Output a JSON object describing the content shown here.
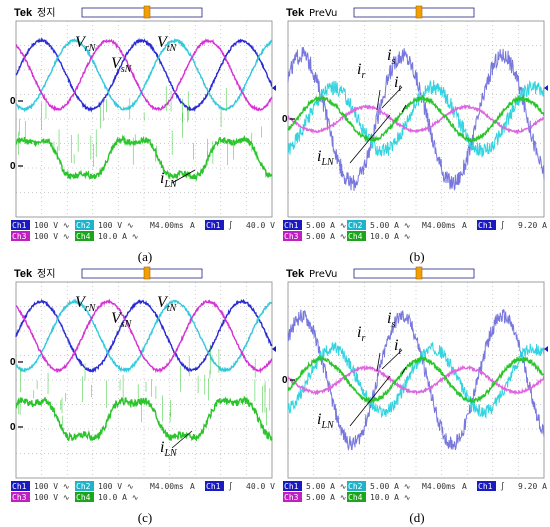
{
  "chart_data": [
    {
      "type": "line",
      "caption": "(a)",
      "header": {
        "brand": "Tek",
        "state": "정지"
      },
      "zero_markers": [
        "0",
        "0"
      ],
      "footer": {
        "row1": [
          "Ch1",
          "100 V ∿",
          "Ch2",
          "100 V ∿",
          "M4.00ms",
          "A",
          "Ch1",
          "∫",
          "40.0 V"
        ],
        "row2": [
          "Ch3",
          "100 V ∿",
          "Ch4",
          "10.0 A ∿"
        ]
      },
      "annotations": [
        {
          "base": "V",
          "sub": "rN"
        },
        {
          "base": "V",
          "sub": "sN"
        },
        {
          "base": "V",
          "sub": "tN"
        },
        {
          "base": "i",
          "sub": "LN"
        }
      ],
      "series": [
        {
          "channel": "Ch1",
          "color": "#2a2ad4",
          "kind": "sine",
          "amplitude": 1.4,
          "phase_deg": 0,
          "offset_div": 1.8,
          "noise": 0.05
        },
        {
          "channel": "Ch2",
          "color": "#33c9dd",
          "kind": "sine",
          "amplitude": 1.4,
          "phase_deg": -120,
          "offset_div": 1.8,
          "noise": 0.05
        },
        {
          "channel": "Ch3",
          "color": "#d433d4",
          "kind": "sine",
          "amplitude": 1.4,
          "phase_deg": 120,
          "offset_div": 1.8,
          "noise": 0.05
        },
        {
          "channel": "Ch4",
          "color": "#2bc42b",
          "kind": "current",
          "amplitude": 1.05,
          "phase_deg": 30,
          "offset_div": -1.6,
          "noise": 0.12,
          "spikes": true
        }
      ]
    },
    {
      "type": "line",
      "caption": "(b)",
      "header": {
        "brand": "Tek",
        "state": "PreVu"
      },
      "zero_markers": [
        "0"
      ],
      "footer": {
        "row1": [
          "Ch1",
          "5.00 A ∿",
          "Ch2",
          "5.00 A ∿",
          "M4.00ms",
          "A",
          "Ch1",
          "∫",
          "9.20 A"
        ],
        "row2": [
          "Ch3",
          "5.00 A ∿",
          "Ch4",
          "10.0 A ∿"
        ]
      },
      "annotations": [
        {
          "base": "i",
          "sub": "r"
        },
        {
          "base": "i",
          "sub": "s"
        },
        {
          "base": "i",
          "sub": "t"
        },
        {
          "base": "i",
          "sub": "LN"
        }
      ],
      "series": [
        {
          "channel": "Ch1",
          "color": "#7777dd",
          "kind": "sine",
          "amplitude": 2.6,
          "phase_deg": 40,
          "offset_div": 0,
          "noise": 0.35
        },
        {
          "channel": "Ch2",
          "color": "#33d4e0",
          "kind": "sine",
          "amplitude": 1.3,
          "phase_deg": -70,
          "offset_div": 0,
          "noise": 0.3
        },
        {
          "channel": "Ch3",
          "color": "#dd66dd",
          "kind": "sine",
          "amplitude": 0.5,
          "phase_deg": 170,
          "offset_div": 0,
          "noise": 0.05
        },
        {
          "channel": "Ch4",
          "color": "#2bc42b",
          "kind": "sine",
          "amplitude": 0.85,
          "phase_deg": -30,
          "offset_div": 0,
          "noise": 0.08
        }
      ]
    },
    {
      "type": "line",
      "caption": "(c)",
      "header": {
        "brand": "Tek",
        "state": "정지"
      },
      "zero_markers": [
        "0",
        "0"
      ],
      "footer": {
        "row1": [
          "Ch1",
          "100 V ∿",
          "Ch2",
          "100 V ∿",
          "M4.00ms",
          "A",
          "Ch1",
          "∫",
          "40.0 V"
        ],
        "row2": [
          "Ch3",
          "100 V ∿",
          "Ch4",
          "10.0 A ∿"
        ]
      },
      "annotations": [
        {
          "base": "V",
          "sub": "rN"
        },
        {
          "base": "V",
          "sub": "sN"
        },
        {
          "base": "V",
          "sub": "tN"
        },
        {
          "base": "i",
          "sub": "LN"
        }
      ],
      "series": [
        {
          "channel": "Ch1",
          "color": "#2a2ad4",
          "kind": "sine",
          "amplitude": 1.4,
          "phase_deg": 0,
          "offset_div": 1.8,
          "noise": 0.05
        },
        {
          "channel": "Ch2",
          "color": "#33c9dd",
          "kind": "sine",
          "amplitude": 1.4,
          "phase_deg": -120,
          "offset_div": 1.8,
          "noise": 0.05
        },
        {
          "channel": "Ch3",
          "color": "#d433d4",
          "kind": "sine",
          "amplitude": 1.4,
          "phase_deg": 120,
          "offset_div": 1.8,
          "noise": 0.05
        },
        {
          "channel": "Ch4",
          "color": "#2bc42b",
          "kind": "current",
          "amplitude": 1.05,
          "phase_deg": 30,
          "offset_div": -1.6,
          "noise": 0.15,
          "spikes": true
        }
      ]
    },
    {
      "type": "line",
      "caption": "(d)",
      "header": {
        "brand": "Tek",
        "state": "PreVu"
      },
      "zero_markers": [
        "0"
      ],
      "footer": {
        "row1": [
          "Ch1",
          "5.00 A ∿",
          "Ch2",
          "5.00 A ∿",
          "M4.00ms",
          "A",
          "Ch1",
          "∫",
          "9.20 A"
        ],
        "row2": [
          "Ch3",
          "5.00 A ∿",
          "Ch4",
          "10.0 A ∿"
        ]
      },
      "annotations": [
        {
          "base": "i",
          "sub": "r"
        },
        {
          "base": "i",
          "sub": "s"
        },
        {
          "base": "i",
          "sub": "t"
        },
        {
          "base": "i",
          "sub": "LN"
        }
      ],
      "series": [
        {
          "channel": "Ch1",
          "color": "#7777dd",
          "kind": "sine",
          "amplitude": 2.6,
          "phase_deg": 40,
          "offset_div": 0,
          "noise": 0.3
        },
        {
          "channel": "Ch2",
          "color": "#33d4e0",
          "kind": "sine",
          "amplitude": 1.3,
          "phase_deg": -70,
          "offset_div": 0,
          "noise": 0.25
        },
        {
          "channel": "Ch3",
          "color": "#dd66dd",
          "kind": "sine",
          "amplitude": 0.5,
          "phase_deg": 170,
          "offset_div": 0,
          "noise": 0.05
        },
        {
          "channel": "Ch4",
          "color": "#2bc42b",
          "kind": "sine",
          "amplitude": 0.85,
          "phase_deg": -30,
          "offset_div": 0,
          "noise": 0.08
        }
      ]
    }
  ]
}
